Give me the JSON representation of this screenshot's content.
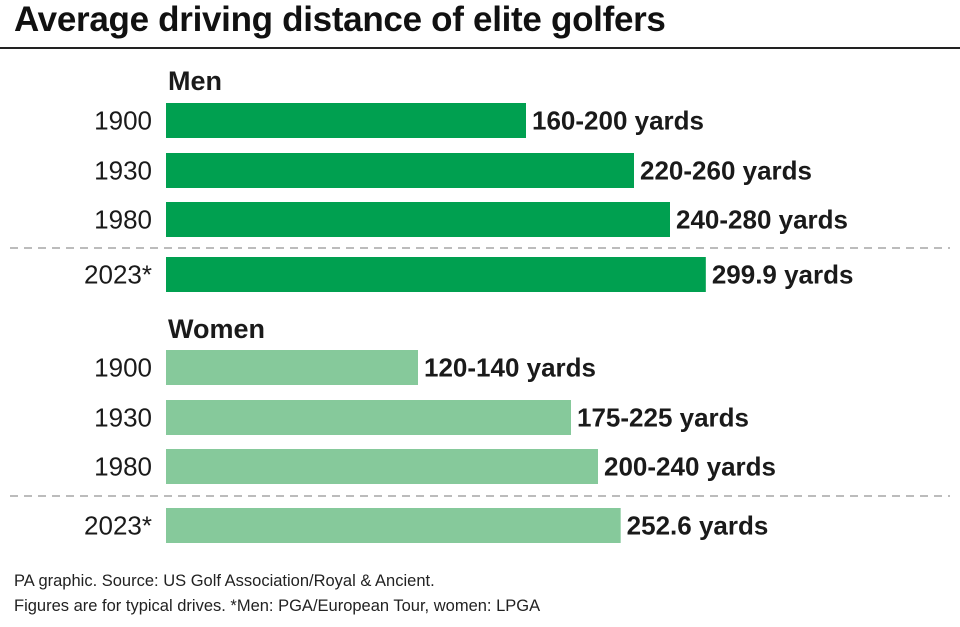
{
  "title": "Average driving distance of elite golfers",
  "footer": {
    "source": "PA graphic. Source: US Golf Association/Royal & Ancient.",
    "note": "Figures are for typical drives. *Men: PGA/European Tour, women: LPGA"
  },
  "colors": {
    "men_bar": "#00a050",
    "women_bar": "#86c99b",
    "divider": "#a6a6a6",
    "text": "#1a1a1a"
  },
  "chart_data": {
    "type": "bar",
    "orientation": "horizontal",
    "title": "Average driving distance of elite golfers",
    "unit": "yards",
    "xlim": [
      0,
      360
    ],
    "groups": [
      {
        "name": "Men",
        "rows": [
          {
            "year": "1900",
            "label": "160-200 yards",
            "low": 160,
            "high": 200
          },
          {
            "year": "1930",
            "label": "220-260 yards",
            "low": 220,
            "high": 260
          },
          {
            "year": "1980",
            "label": "240-280 yards",
            "low": 240,
            "high": 280
          },
          {
            "year": "2023*",
            "label": "299.9 yards",
            "low": 299.9,
            "high": 299.9
          }
        ]
      },
      {
        "name": "Women",
        "rows": [
          {
            "year": "1900",
            "label": "120-140 yards",
            "low": 120,
            "high": 140
          },
          {
            "year": "1930",
            "label": "175-225 yards",
            "low": 175,
            "high": 225
          },
          {
            "year": "1980",
            "label": "200-240 yards",
            "low": 200,
            "high": 240
          },
          {
            "year": "2023*",
            "label": "252.6 yards",
            "low": 252.6,
            "high": 252.6
          }
        ]
      }
    ]
  }
}
